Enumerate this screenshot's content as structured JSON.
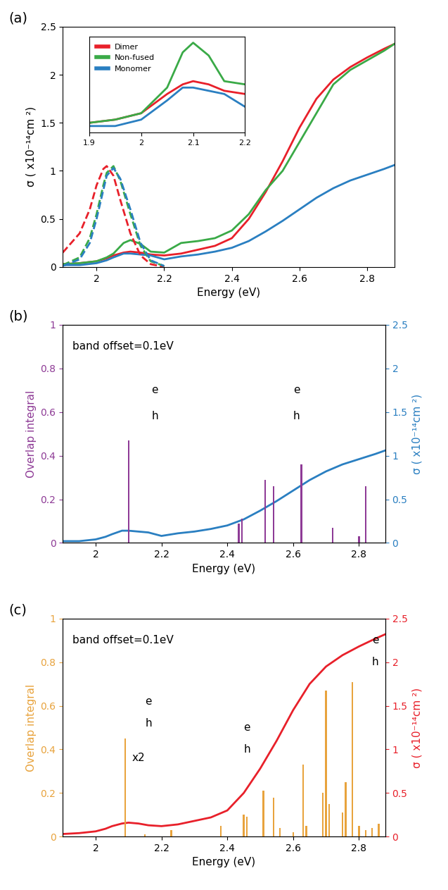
{
  "chart_data": [
    {
      "type": "line",
      "panel": "(a)",
      "x_label": "Energy (eV)",
      "y_label": "σ ( x10⁻¹⁴cm ²)",
      "xlim": [
        1.9,
        2.88
      ],
      "ylim": [
        0,
        2.5
      ],
      "xticks": [
        2,
        2.2,
        2.4,
        2.6,
        2.8
      ],
      "yticks": [
        0,
        0.5,
        1,
        1.5,
        2,
        2.5
      ],
      "x": [
        1.9,
        1.95,
        2.0,
        2.03,
        2.05,
        2.08,
        2.1,
        2.13,
        2.16,
        2.2,
        2.25,
        2.3,
        2.35,
        2.4,
        2.45,
        2.5,
        2.55,
        2.6,
        2.65,
        2.7,
        2.75,
        2.8,
        2.85,
        2.88
      ],
      "series": [
        {
          "color": "#e8202a",
          "line_style": "solid",
          "values": [
            0.03,
            0.04,
            0.06,
            0.09,
            0.12,
            0.15,
            0.16,
            0.15,
            0.13,
            0.12,
            0.14,
            0.18,
            0.22,
            0.3,
            0.5,
            0.78,
            1.1,
            1.45,
            1.75,
            1.95,
            2.08,
            2.18,
            2.27,
            2.32
          ]
        },
        {
          "color": "#3aaa47",
          "line_style": "solid",
          "values": [
            0.03,
            0.04,
            0.06,
            0.1,
            0.14,
            0.25,
            0.28,
            0.24,
            0.16,
            0.15,
            0.25,
            0.27,
            0.3,
            0.38,
            0.55,
            0.8,
            1.0,
            1.3,
            1.6,
            1.9,
            2.05,
            2.15,
            2.25,
            2.32
          ]
        },
        {
          "color": "#2a7fc1",
          "line_style": "solid",
          "values": [
            0.02,
            0.02,
            0.04,
            0.07,
            0.1,
            0.14,
            0.14,
            0.13,
            0.12,
            0.08,
            0.11,
            0.13,
            0.16,
            0.2,
            0.27,
            0.37,
            0.48,
            0.6,
            0.72,
            0.82,
            0.9,
            0.96,
            1.02,
            1.06
          ]
        },
        {
          "color": "#e8202a",
          "line_style": "dashed",
          "x": [
            1.9,
            1.95,
            1.98,
            2.0,
            2.02,
            2.03,
            2.05,
            2.07,
            2.1,
            2.13,
            2.16,
            2.2
          ],
          "values": [
            0.15,
            0.35,
            0.6,
            0.85,
            1.02,
            1.05,
            0.95,
            0.7,
            0.35,
            0.12,
            0.03,
            0.0
          ]
        },
        {
          "color": "#3aaa47",
          "line_style": "dashed",
          "x": [
            1.9,
            1.95,
            1.98,
            2.0,
            2.02,
            2.03,
            2.05,
            2.07,
            2.1,
            2.13,
            2.16,
            2.2
          ],
          "values": [
            0.02,
            0.1,
            0.3,
            0.55,
            0.85,
            0.98,
            1.05,
            0.9,
            0.55,
            0.22,
            0.06,
            0.01
          ]
        },
        {
          "color": "#2a7fc1",
          "line_style": "dashed",
          "x": [
            1.9,
            1.95,
            1.98,
            2.0,
            2.02,
            2.03,
            2.05,
            2.07,
            2.1,
            2.13,
            2.16,
            2.2
          ],
          "values": [
            0.01,
            0.08,
            0.25,
            0.5,
            0.8,
            0.95,
            1.03,
            0.92,
            0.6,
            0.25,
            0.07,
            0.01
          ]
        }
      ]
    },
    {
      "type": "line",
      "xlim": [
        1.9,
        2.2
      ],
      "ylim": [
        0,
        0.3
      ],
      "xticks": [
        1.9,
        2,
        2.1,
        2.2
      ],
      "yticks": [],
      "tick_labels": "x",
      "legend": "upper left",
      "x": [
        1.9,
        1.95,
        2.0,
        2.05,
        2.08,
        2.1,
        2.13,
        2.16,
        2.2
      ],
      "series": [
        {
          "name": "Dimer",
          "color": "#e8202a",
          "line_style": "solid",
          "values": [
            0.03,
            0.04,
            0.06,
            0.12,
            0.15,
            0.16,
            0.15,
            0.13,
            0.12
          ]
        },
        {
          "name": "Non-fused",
          "color": "#3aaa47",
          "line_style": "solid",
          "values": [
            0.03,
            0.04,
            0.06,
            0.14,
            0.25,
            0.28,
            0.24,
            0.16,
            0.15
          ]
        },
        {
          "name": "Monomer",
          "color": "#2a7fc1",
          "line_style": "solid",
          "values": [
            0.02,
            0.02,
            0.04,
            0.1,
            0.14,
            0.14,
            0.13,
            0.12,
            0.08
          ]
        }
      ]
    },
    {
      "type": "bar",
      "panel": "(b)",
      "x_label": "Energy (eV)",
      "y_label": "Overlap integral",
      "y2_label": "σ ( x10⁻¹⁴cm ²)",
      "xlim": [
        1.9,
        2.88
      ],
      "ylim": [
        0,
        1
      ],
      "y2lim": [
        0,
        2.5
      ],
      "xticks": [
        2,
        2.2,
        2.4,
        2.6,
        2.8
      ],
      "yticks": [
        0,
        0.2,
        0.4,
        0.6,
        0.8,
        1
      ],
      "y2ticks": [
        0,
        0.5,
        1,
        1.5,
        2,
        2.5
      ],
      "annotations": [
        {
          "text": "band offset=0.1eV",
          "x": 1.93,
          "y": 0.9
        },
        {
          "text": "e",
          "x": 2.17,
          "y": 0.7
        },
        {
          "text": "h",
          "x": 2.17,
          "y": 0.58
        },
        {
          "text": "e",
          "x": 2.6,
          "y": 0.7
        },
        {
          "text": "h",
          "x": 2.6,
          "y": 0.58
        }
      ],
      "series": [
        {
          "type": "bar",
          "color": "#8e3b96",
          "x": [
            2.1,
            2.435,
            2.445,
            2.515,
            2.54,
            2.625,
            2.72,
            2.8,
            2.82
          ],
          "values": [
            0.47,
            0.09,
            0.11,
            0.29,
            0.26,
            0.36,
            0.07,
            0.03,
            0.26
          ]
        },
        {
          "type": "line",
          "axis": "y2",
          "color": "#2a7fc1",
          "line_style": "solid",
          "x": [
            1.9,
            1.95,
            2.0,
            2.03,
            2.05,
            2.08,
            2.1,
            2.13,
            2.16,
            2.2,
            2.25,
            2.3,
            2.35,
            2.4,
            2.45,
            2.5,
            2.55,
            2.6,
            2.65,
            2.7,
            2.75,
            2.8,
            2.85,
            2.88
          ],
          "values": [
            0.02,
            0.02,
            0.04,
            0.07,
            0.1,
            0.14,
            0.14,
            0.13,
            0.12,
            0.08,
            0.11,
            0.13,
            0.16,
            0.2,
            0.27,
            0.37,
            0.48,
            0.6,
            0.72,
            0.82,
            0.9,
            0.96,
            1.02,
            1.06
          ]
        }
      ]
    },
    {
      "type": "bar",
      "panel": "(c)",
      "x_label": "Energy (eV)",
      "y_label": "Overlap integral",
      "y2_label": "σ ( x10⁻¹⁴cm ²)",
      "xlim": [
        1.9,
        2.88
      ],
      "ylim": [
        0,
        1
      ],
      "y2lim": [
        0,
        2.5
      ],
      "xticks": [
        2,
        2.2,
        2.4,
        2.6,
        2.8
      ],
      "yticks": [
        0,
        0.2,
        0.4,
        0.6,
        0.8,
        1
      ],
      "y2ticks": [
        0,
        0.5,
        1,
        1.5,
        2,
        2.5
      ],
      "annotations": [
        {
          "text": "band offset=0.1eV",
          "x": 1.93,
          "y": 0.9
        },
        {
          "text": "e",
          "x": 2.15,
          "y": 0.62
        },
        {
          "text": "h",
          "x": 2.15,
          "y": 0.52
        },
        {
          "text": "x2",
          "x": 2.11,
          "y": 0.36
        },
        {
          "text": "e",
          "x": 2.45,
          "y": 0.5
        },
        {
          "text": "h",
          "x": 2.45,
          "y": 0.4
        },
        {
          "text": "e",
          "x": 2.84,
          "y": 0.9
        },
        {
          "text": "h",
          "x": 2.84,
          "y": 0.8
        }
      ],
      "series": [
        {
          "type": "bar",
          "color": "#e8a33d",
          "x": [
            2.09,
            2.15,
            2.23,
            2.38,
            2.45,
            2.46,
            2.51,
            2.54,
            2.56,
            2.6,
            2.63,
            2.64,
            2.69,
            2.7,
            2.71,
            2.75,
            2.76,
            2.78,
            2.8,
            2.82,
            2.84,
            2.86
          ],
          "values": [
            0.45,
            0.01,
            0.03,
            0.05,
            0.1,
            0.09,
            0.21,
            0.18,
            0.04,
            0.02,
            0.33,
            0.05,
            0.2,
            0.67,
            0.15,
            0.11,
            0.25,
            0.71,
            0.05,
            0.03,
            0.04,
            0.06
          ]
        },
        {
          "type": "line",
          "axis": "y2",
          "color": "#e8202a",
          "line_style": "solid",
          "x": [
            1.9,
            1.95,
            2.0,
            2.03,
            2.05,
            2.08,
            2.1,
            2.13,
            2.16,
            2.2,
            2.25,
            2.3,
            2.35,
            2.4,
            2.45,
            2.5,
            2.55,
            2.6,
            2.65,
            2.7,
            2.75,
            2.8,
            2.85,
            2.88
          ],
          "values": [
            0.03,
            0.04,
            0.06,
            0.09,
            0.12,
            0.15,
            0.16,
            0.15,
            0.13,
            0.12,
            0.14,
            0.18,
            0.22,
            0.3,
            0.5,
            0.78,
            1.1,
            1.45,
            1.75,
            1.95,
            2.08,
            2.18,
            2.27,
            2.32
          ]
        }
      ]
    }
  ]
}
